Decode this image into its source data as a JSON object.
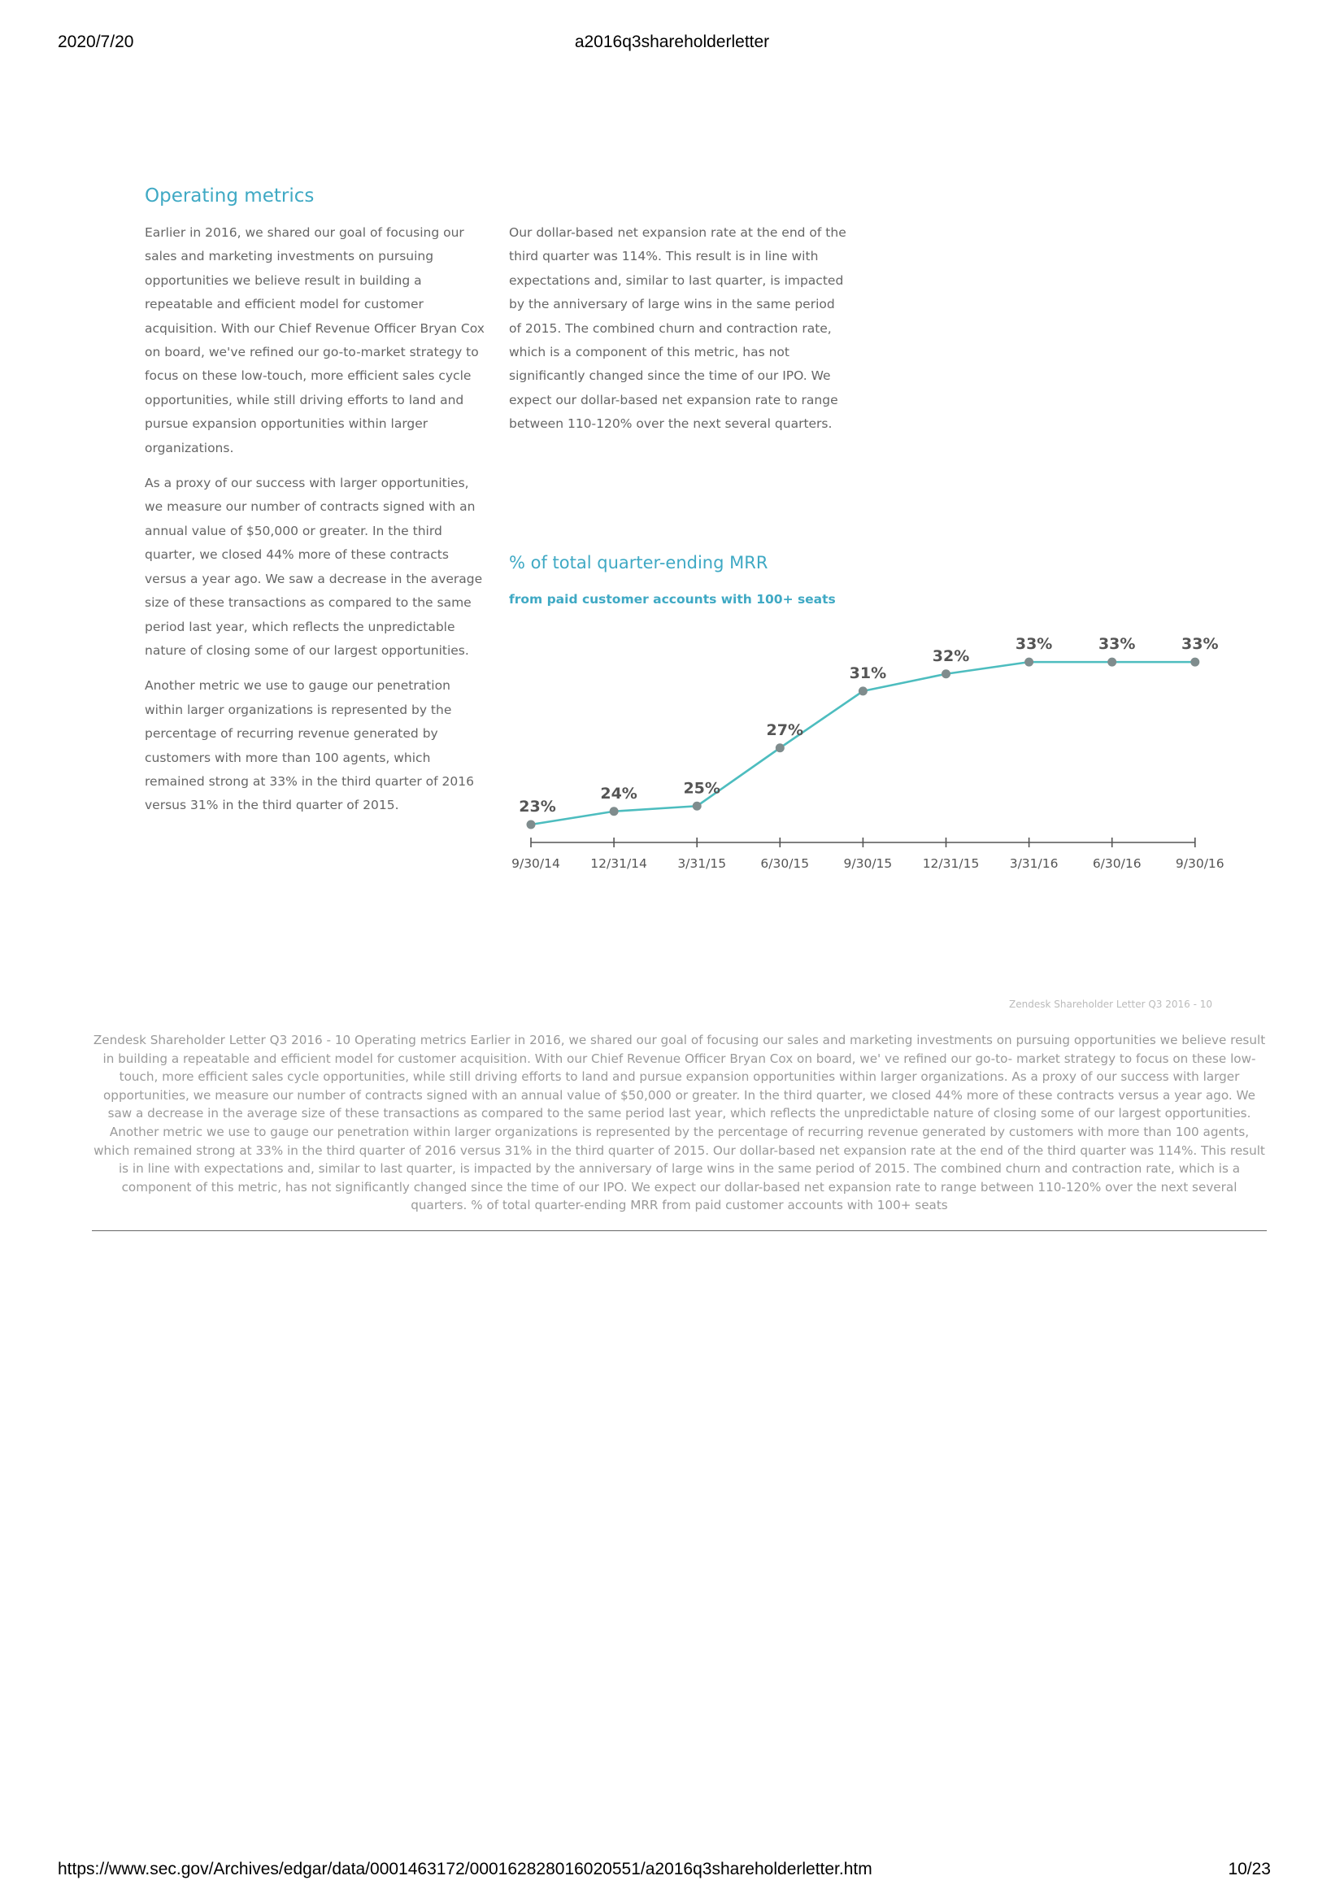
{
  "header": {
    "date": "2020/7/20",
    "title": "a2016q3shareholderletter"
  },
  "footer": {
    "url": "https://www.sec.gov/Archives/edgar/data/0001463172/000162828016020551/a2016q3shareholderletter.htm",
    "page": "10/23"
  },
  "section": {
    "title": "Operating metrics",
    "left_paragraphs": [
      "Earlier in 2016, we shared our goal of focusing our sales and marketing investments on pursuing opportunities we believe result in building a repeatable and efficient model for customer acquisition. With our Chief Revenue Officer Bryan Cox on board, we've refined our go-to-market strategy to focus on these low-touch, more efficient sales cycle opportunities, while still driving efforts to land and pursue expansion opportunities within larger organizations.",
      "As a proxy of our success with larger opportunities, we measure our number of contracts signed with an annual value of $50,000 or greater. In the third quarter, we closed 44% more of these contracts versus a year ago. We saw a decrease in the average size of these transactions as compared to the same period last year, which reflects the unpredictable nature of closing some of our largest opportunities.",
      "Another metric we use to gauge our penetration within larger organizations is represented by the percentage of recurring revenue generated by customers with more than 100 agents, which remained strong at 33% in the third quarter of 2016 versus 31% in the third quarter of 2015."
    ],
    "right_paragraphs": [
      "Our dollar-based net expansion rate at the end of the third quarter was 114%. This result is in line with expectations and, similar to last quarter, is impacted by the anniversary of large wins in the same period of 2015. The combined churn and contraction rate, which is a component of this metric, has not significantly changed since the time of our IPO. We expect our dollar-based net expansion rate to range between 110-120% over the next several quarters."
    ]
  },
  "chart_data": {
    "type": "line",
    "title": "% of total quarter-ending MRR",
    "subtitle": "from paid customer accounts with 100+ seats",
    "categories": [
      "9/30/14",
      "12/31/14",
      "3/31/15",
      "6/30/15",
      "9/30/15",
      "12/31/15",
      "3/31/16",
      "6/30/16",
      "9/30/16"
    ],
    "values": [
      23,
      24,
      25,
      27,
      31,
      32,
      33,
      33,
      33
    ],
    "value_labels": [
      "23%",
      "24%",
      "25%",
      "27%",
      "31%",
      "32%",
      "33%",
      "33%",
      "33%"
    ],
    "y_curve": [
      21.6,
      22.6,
      23.0,
      27.4,
      31.7,
      33.0,
      33.9,
      33.9,
      33.9
    ],
    "ylim": [
      20,
      36
    ],
    "line_color": "#4dbdbf",
    "point_color": "#7f8c8d"
  },
  "page_caption": "Zendesk Shareholder Letter Q3 2016 - 10",
  "extracted_text": "Zendesk Shareholder Letter Q3 2016 - 10 Operating metrics Earlier in 2016, we shared our goal of focusing  our sales and marketing investments on pursuing  opportunities we believe result in building a  repeatable and efficient model for customer  acquisition. With our Chief Revenue Officer  Bryan Cox on board, we'   ve refined our go-to- market strategy to focus on these low-touch,  more efficient sales cycle opportunities, while  still driving efforts to land and pursue expansion  opportunities within larger organizations. As a proxy of our success with larger  opportunities, we measure our number of  contracts signed with an annual value of $50,000  or greater. In the third quarter, we closed 44% more of these contracts versus a year ago. We  saw a decrease in the average size of these  transactions as compared to the same period last  year, which reflects the unpredictable nature of  closing some of our largest opportunities.  Another metric we use to gauge our penetration  within larger organizations is represented by  the percentage of recurring revenue generated  by customers with more than 100 agents, which  remained strong at 33% in the third quarter of  2016 versus 31% in the third quarter of 2015. Our dollar-based net expansion rate at the end  of the third quarter was 114%. This result is in line  with expectations and, similar to last quarter, is  impacted by the anniversary of large wins in the same period of 2015. The combined churn and  contraction rate, which is a component of this  metric, has not significantly changed since the  time of our IPO. We expect our dollar-based net  expansion rate to range between 110-120% over  the next several quarters. % of total quarter-ending MRR from paid customer accounts with 100+ seats"
}
